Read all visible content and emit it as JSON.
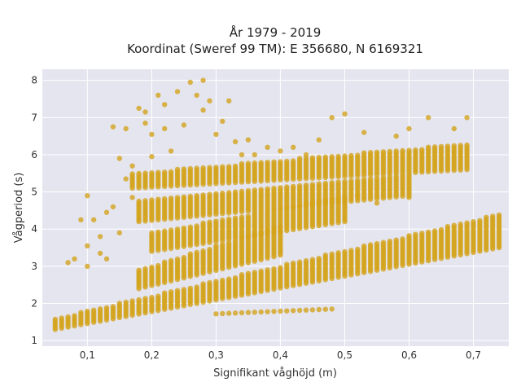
{
  "chart_data": {
    "type": "scatter",
    "title_line1": "År 1979 - 2019",
    "title_line2": "Koordinat (Sweref 99 TM): E 356680, N 6169321",
    "xlabel": "Signifikant våghöjd (m)",
    "ylabel": "Vågperiod (s)",
    "xlim": [
      0.03,
      0.755
    ],
    "ylim": [
      0.85,
      8.3
    ],
    "x_ticks": [
      0.1,
      0.2,
      0.3,
      0.4,
      0.5,
      0.6,
      0.7
    ],
    "x_tick_labels": [
      "0,1",
      "0,2",
      "0,3",
      "0,4",
      "0,5",
      "0,6",
      "0,7"
    ],
    "y_ticks": [
      1,
      2,
      3,
      4,
      5,
      6,
      7,
      8
    ],
    "y_tick_labels": [
      "1",
      "2",
      "3",
      "4",
      "5",
      "6",
      "7",
      "8"
    ],
    "grid": true,
    "colors": {
      "plot_background": "#e5e5f0",
      "grid": "#ffffff",
      "marker": "#d4a318"
    },
    "x_step": 0.01,
    "series": [
      {
        "bands": [
          {
            "x_from": 0.05,
            "x_to": 0.74,
            "y_low_start": 1.3,
            "y_low_end": 3.5,
            "y_high_start": 1.6,
            "y_high_end": 4.4
          },
          {
            "x_from": 0.18,
            "x_to": 0.4,
            "y_low_start": 2.4,
            "y_low_end": 3.3,
            "y_high_start": 2.9,
            "y_high_end": 4.1
          },
          {
            "x_from": 0.2,
            "x_to": 0.5,
            "y_low_start": 3.4,
            "y_low_end": 4.2,
            "y_high_start": 3.9,
            "y_high_end": 4.9
          },
          {
            "x_from": 0.18,
            "x_to": 0.6,
            "y_low_start": 4.2,
            "y_low_end": 4.9,
            "y_high_start": 4.8,
            "y_high_end": 5.5
          },
          {
            "x_from": 0.17,
            "x_to": 0.69,
            "y_low_start": 5.1,
            "y_low_end": 5.6,
            "y_high_start": 5.5,
            "y_high_end": 6.3
          }
        ],
        "lower_line": {
          "x_from": 0.3,
          "x_to": 0.48,
          "y_start": 1.72,
          "y_end": 1.85
        },
        "scatter": [
          [
            0.07,
            3.1
          ],
          [
            0.08,
            3.2
          ],
          [
            0.09,
            4.25
          ],
          [
            0.1,
            4.9
          ],
          [
            0.1,
            3.55
          ],
          [
            0.11,
            4.25
          ],
          [
            0.12,
            3.8
          ],
          [
            0.13,
            4.45
          ],
          [
            0.13,
            3.2
          ],
          [
            0.14,
            4.6
          ],
          [
            0.14,
            6.75
          ],
          [
            0.15,
            3.9
          ],
          [
            0.16,
            5.35
          ],
          [
            0.16,
            6.7
          ],
          [
            0.17,
            4.85
          ],
          [
            0.18,
            7.25
          ],
          [
            0.19,
            7.15
          ],
          [
            0.19,
            6.85
          ],
          [
            0.2,
            6.55
          ],
          [
            0.21,
            7.6
          ],
          [
            0.22,
            7.35
          ],
          [
            0.22,
            6.7
          ],
          [
            0.23,
            6.1
          ],
          [
            0.24,
            7.7
          ],
          [
            0.25,
            6.8
          ],
          [
            0.26,
            7.95
          ],
          [
            0.27,
            7.6
          ],
          [
            0.28,
            8.0
          ],
          [
            0.28,
            7.2
          ],
          [
            0.29,
            7.45
          ],
          [
            0.3,
            6.55
          ],
          [
            0.31,
            6.9
          ],
          [
            0.32,
            7.45
          ],
          [
            0.33,
            6.35
          ],
          [
            0.34,
            6.0
          ],
          [
            0.35,
            6.4
          ],
          [
            0.36,
            6.0
          ],
          [
            0.38,
            6.2
          ],
          [
            0.4,
            6.1
          ],
          [
            0.42,
            6.2
          ],
          [
            0.44,
            6.0
          ],
          [
            0.46,
            6.4
          ],
          [
            0.48,
            7.0
          ],
          [
            0.5,
            7.1
          ],
          [
            0.53,
            6.6
          ],
          [
            0.58,
            6.5
          ],
          [
            0.6,
            6.7
          ],
          [
            0.63,
            7.0
          ],
          [
            0.67,
            6.7
          ],
          [
            0.69,
            7.0
          ],
          [
            0.52,
            4.9
          ],
          [
            0.55,
            4.7
          ],
          [
            0.6,
            4.85
          ],
          [
            0.1,
            3.0
          ],
          [
            0.12,
            3.35
          ],
          [
            0.15,
            5.9
          ],
          [
            0.17,
            5.7
          ],
          [
            0.2,
            5.95
          ]
        ]
      }
    ]
  }
}
